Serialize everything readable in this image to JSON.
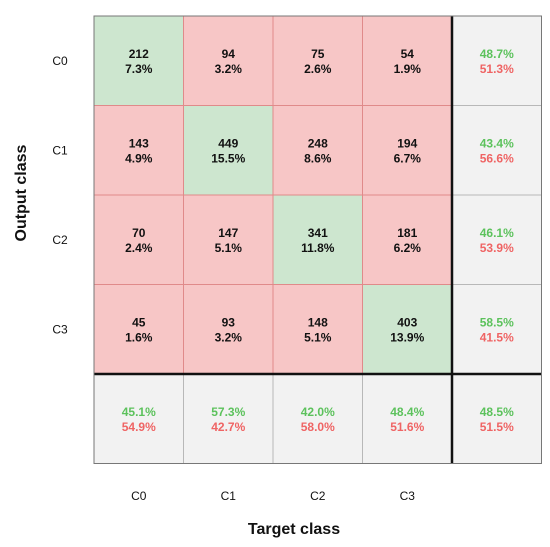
{
  "chart_data": {
    "type": "heatmap",
    "subtype": "confusion-matrix",
    "xlabel": "Target class",
    "ylabel": "Output class",
    "x_categories": [
      "C0",
      "C1",
      "C2",
      "C3"
    ],
    "y_categories": [
      "C0",
      "C1",
      "C2",
      "C3"
    ],
    "counts": [
      [
        212,
        94,
        75,
        54
      ],
      [
        143,
        449,
        248,
        194
      ],
      [
        70,
        147,
        341,
        181
      ],
      [
        45,
        93,
        148,
        403
      ]
    ],
    "percents": [
      [
        "7.3%",
        "3.2%",
        "2.6%",
        "1.9%"
      ],
      [
        "4.9%",
        "15.5%",
        "8.6%",
        "6.7%"
      ],
      [
        "2.4%",
        "5.1%",
        "11.8%",
        "6.2%"
      ],
      [
        "1.6%",
        "3.2%",
        "5.1%",
        "13.9%"
      ]
    ],
    "row_summary": [
      {
        "correct": "48.7%",
        "incorrect": "51.3%"
      },
      {
        "correct": "43.4%",
        "incorrect": "56.6%"
      },
      {
        "correct": "46.1%",
        "incorrect": "53.9%"
      },
      {
        "correct": "58.5%",
        "incorrect": "41.5%"
      }
    ],
    "column_summary": [
      {
        "correct": "45.1%",
        "incorrect": "54.9%"
      },
      {
        "correct": "57.3%",
        "incorrect": "42.7%"
      },
      {
        "correct": "42.0%",
        "incorrect": "58.0%"
      },
      {
        "correct": "48.4%",
        "incorrect": "51.6%"
      }
    ],
    "overall": {
      "correct": "48.5%",
      "incorrect": "51.5%"
    },
    "colors": {
      "diagonal": "#cde6cf",
      "off_diagonal": "#f7c6c6",
      "summary": "#f2f2f2",
      "cell_border": "#e08a8a",
      "correct_text": "#5cc25c",
      "incorrect_text": "#ef6464"
    }
  }
}
